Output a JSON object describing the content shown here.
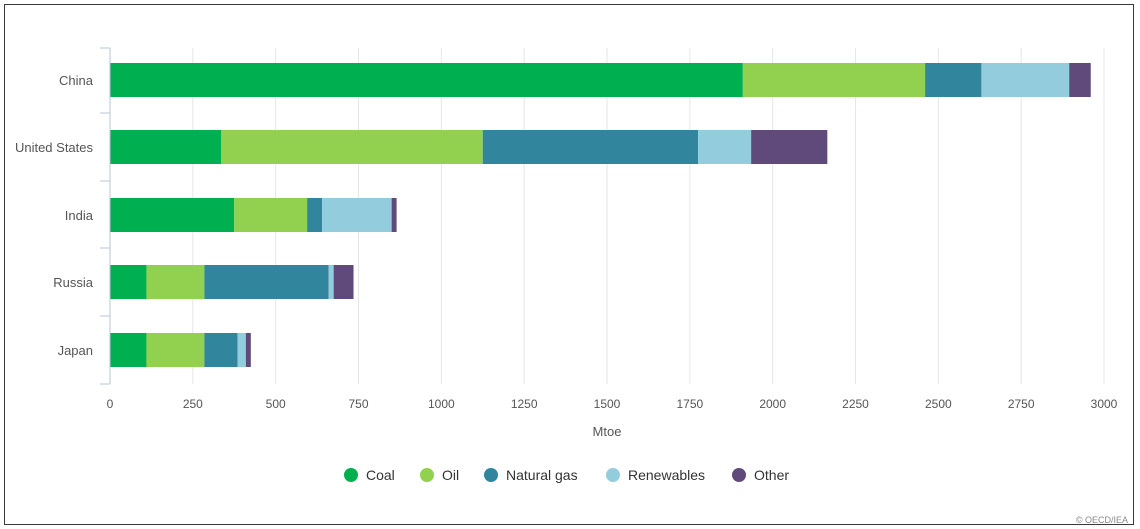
{
  "chart_data": {
    "type": "bar",
    "orientation": "horizontal",
    "stacked": true,
    "categories": [
      "China",
      "United States",
      "India",
      "Russia",
      "Japan"
    ],
    "series": [
      {
        "name": "Coal",
        "color": "#00b050",
        "values": [
          1910,
          335,
          375,
          110,
          110
        ]
      },
      {
        "name": "Oil",
        "color": "#92d050",
        "values": [
          550,
          790,
          220,
          175,
          175
        ]
      },
      {
        "name": "Natural gas",
        "color": "#31859c",
        "values": [
          170,
          650,
          45,
          375,
          100
        ]
      },
      {
        "name": "Renewables",
        "color": "#93cddd",
        "values": [
          265,
          160,
          210,
          15,
          25
        ]
      },
      {
        "name": "Other",
        "color": "#604a7b",
        "values": [
          65,
          230,
          15,
          60,
          15
        ]
      }
    ],
    "xlabel": "Mtoe",
    "ylabel": "",
    "xlim": [
      0,
      3000
    ],
    "xticks": [
      0,
      250,
      500,
      750,
      1000,
      1250,
      1500,
      1750,
      2000,
      2250,
      2500,
      2750,
      3000
    ],
    "grid": true,
    "legend_position": "bottom-center"
  },
  "copyright": "© OECD/IEA"
}
